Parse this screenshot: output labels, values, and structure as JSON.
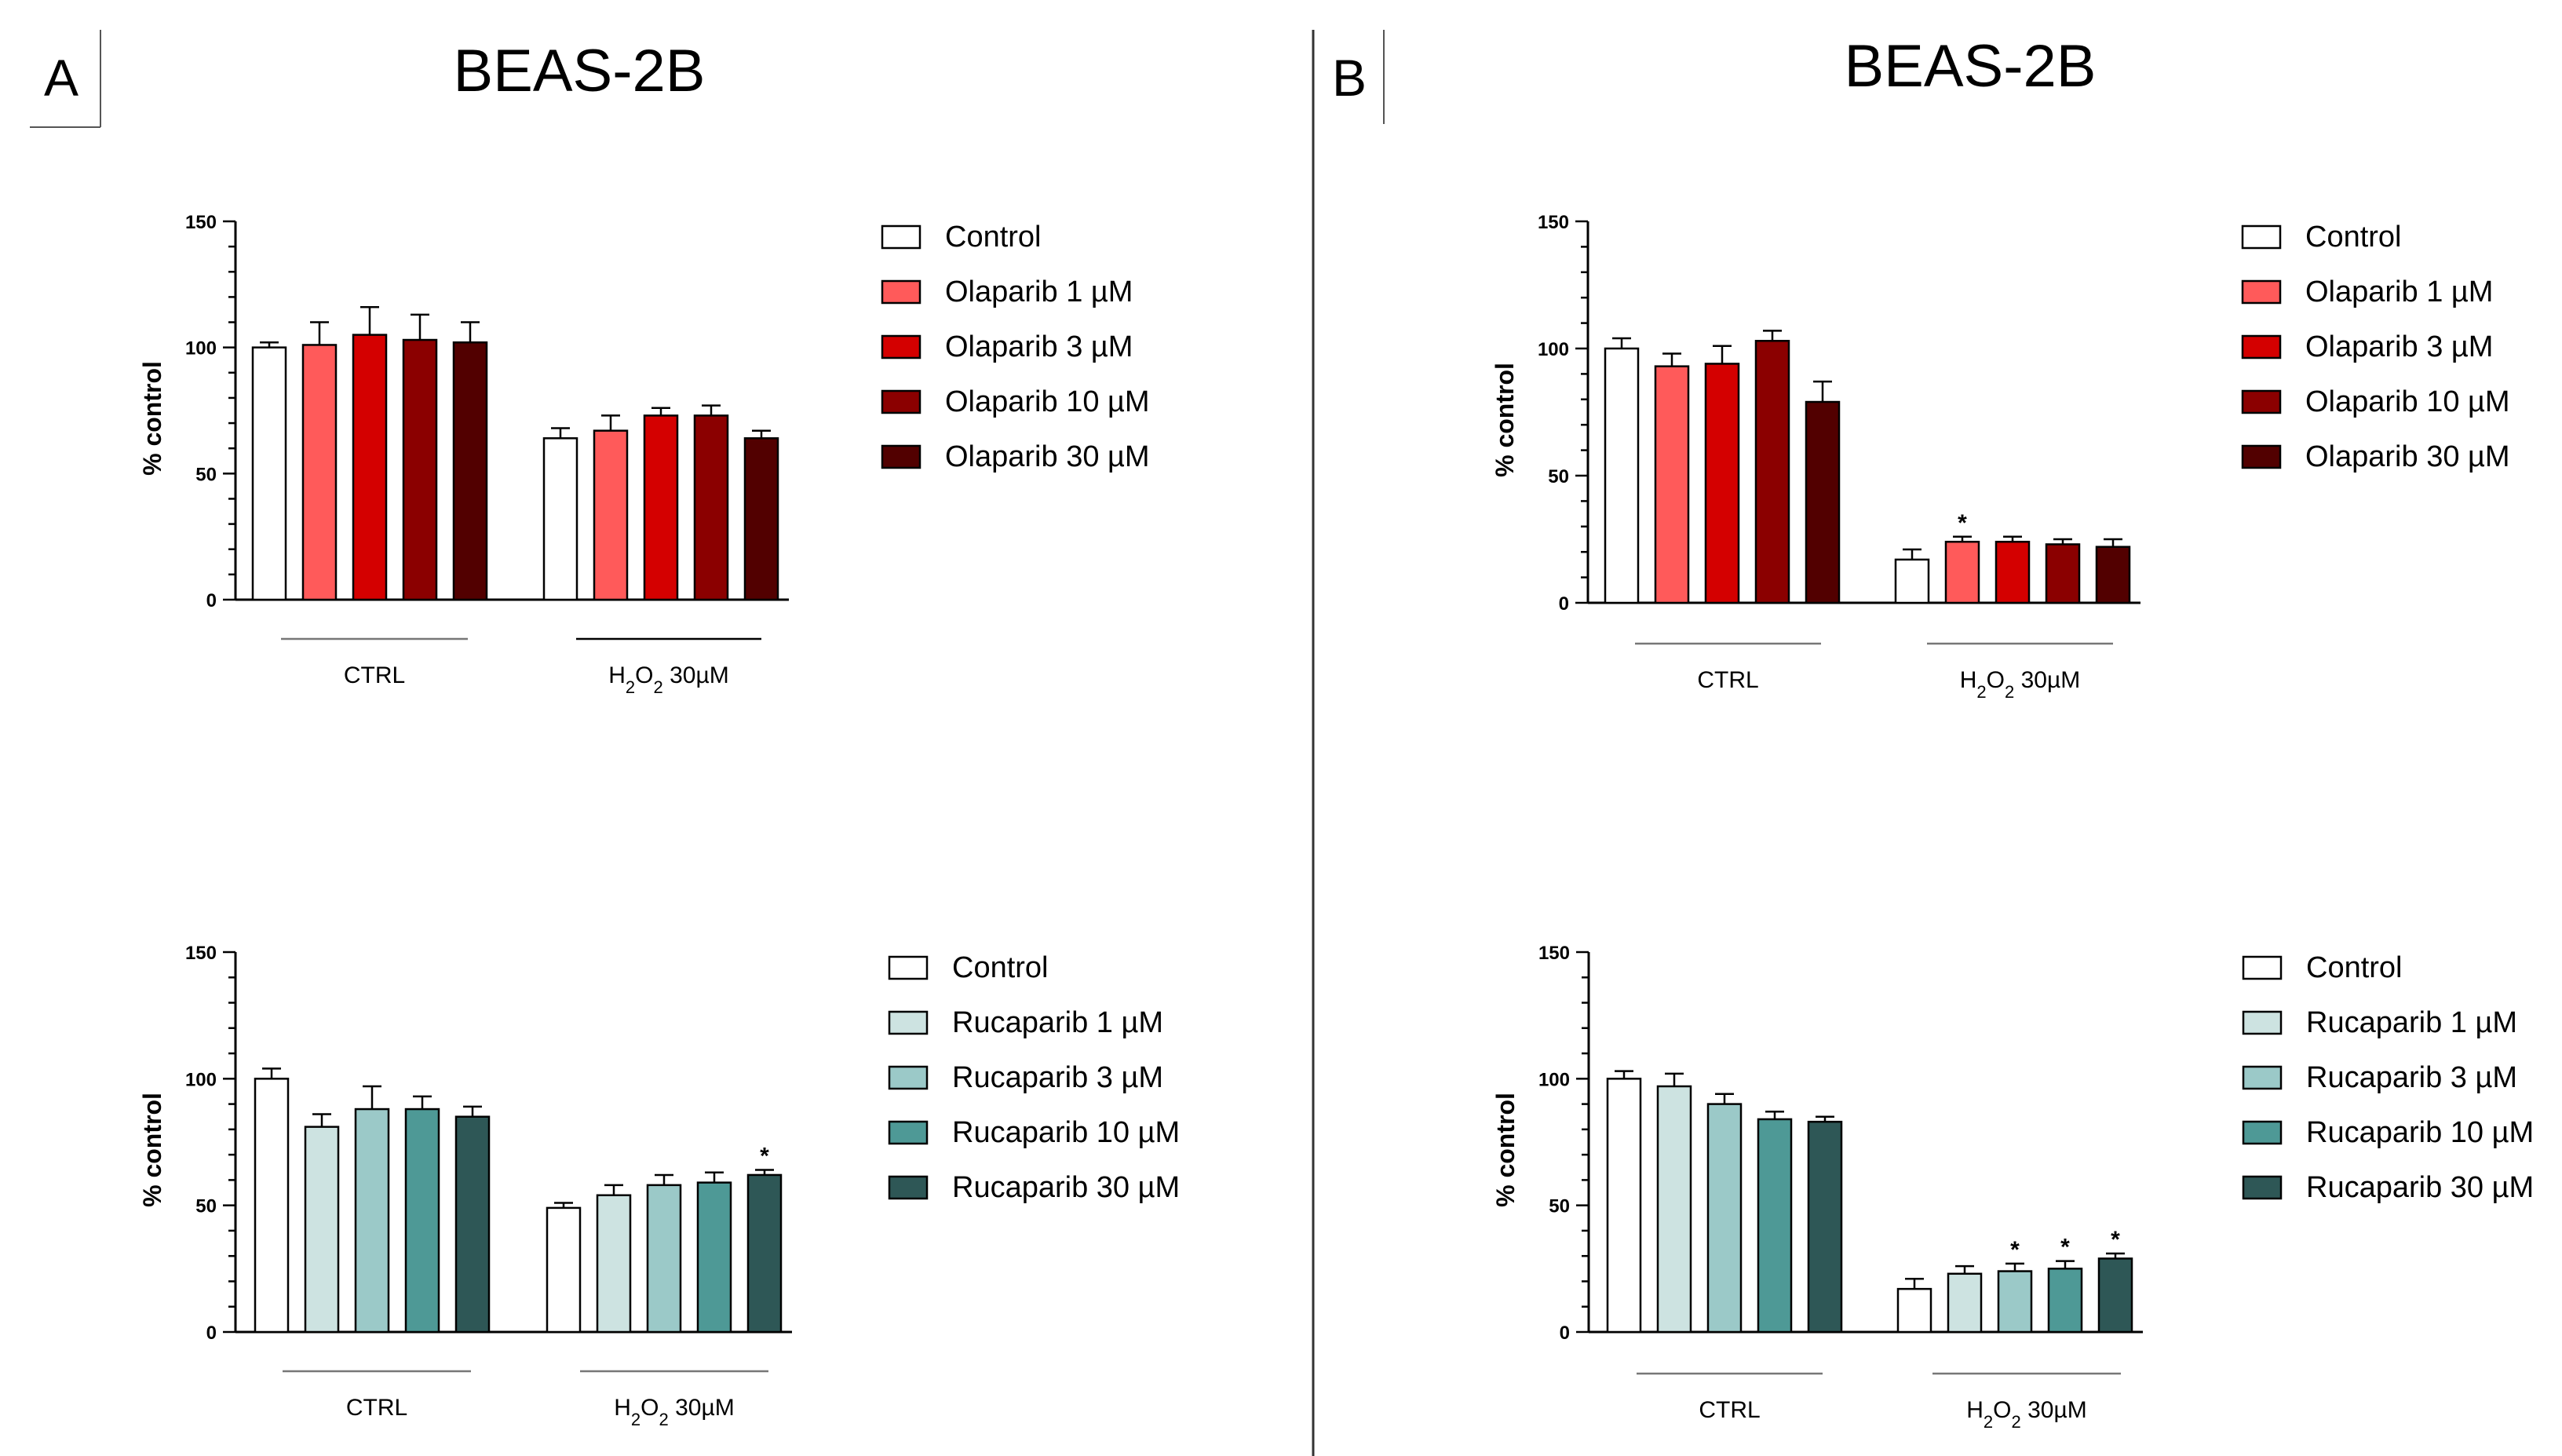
{
  "figure": {
    "panel_a": {
      "letter": "A",
      "title": "BEAS-2B"
    },
    "panel_b": {
      "letter": "B",
      "title": "BEAS-2B"
    }
  },
  "chart_data": [
    {
      "id": "A-olaparib",
      "type": "bar",
      "ylabel": "% control",
      "ylim": [
        0,
        150
      ],
      "yticks": [
        "0",
        "50",
        "100",
        "150"
      ],
      "groups": [
        "CTRL",
        "H2O2 30µM"
      ],
      "legend_placement": "right",
      "series": [
        {
          "name": "Control",
          "color": "#ffffff",
          "values": [
            100,
            64
          ],
          "errors": [
            2,
            4
          ],
          "sig": [
            false,
            false
          ]
        },
        {
          "name": "Olaparib 1 µM",
          "color": "#ff5a5a",
          "values": [
            101,
            67
          ],
          "errors": [
            9,
            6
          ],
          "sig": [
            false,
            false
          ]
        },
        {
          "name": "Olaparib 3 µM",
          "color": "#d40000",
          "values": [
            105,
            73
          ],
          "errors": [
            11,
            3
          ],
          "sig": [
            false,
            false
          ]
        },
        {
          "name": "Olaparib 10 µM",
          "color": "#8b0000",
          "values": [
            103,
            73
          ],
          "errors": [
            10,
            4
          ],
          "sig": [
            false,
            false
          ]
        },
        {
          "name": "Olaparib 30 µM",
          "color": "#520000",
          "values": [
            102,
            64
          ],
          "errors": [
            8,
            3
          ],
          "sig": [
            false,
            false
          ]
        }
      ]
    },
    {
      "id": "B-olaparib",
      "type": "bar",
      "ylabel": "% control",
      "ylim": [
        0,
        150
      ],
      "yticks": [
        "0",
        "50",
        "100",
        "150"
      ],
      "groups": [
        "CTRL",
        "H2O2 30µM"
      ],
      "legend_placement": "right",
      "series": [
        {
          "name": "Control",
          "color": "#ffffff",
          "values": [
            100,
            17
          ],
          "errors": [
            4,
            4
          ],
          "sig": [
            false,
            false
          ]
        },
        {
          "name": "Olaparib 1 µM",
          "color": "#ff5a5a",
          "values": [
            93,
            24
          ],
          "errors": [
            5,
            2
          ],
          "sig": [
            false,
            true
          ]
        },
        {
          "name": "Olaparib 3 µM",
          "color": "#d40000",
          "values": [
            94,
            24
          ],
          "errors": [
            7,
            2
          ],
          "sig": [
            false,
            false
          ]
        },
        {
          "name": "Olaparib 10 µM",
          "color": "#8b0000",
          "values": [
            103,
            23
          ],
          "errors": [
            4,
            2
          ],
          "sig": [
            false,
            false
          ]
        },
        {
          "name": "Olaparib 30 µM",
          "color": "#520000",
          "values": [
            79,
            22
          ],
          "errors": [
            8,
            3
          ],
          "sig": [
            false,
            false
          ]
        }
      ]
    },
    {
      "id": "A-rucaparib",
      "type": "bar",
      "ylabel": "% control",
      "ylim": [
        0,
        150
      ],
      "yticks": [
        "0",
        "50",
        "100",
        "150"
      ],
      "groups": [
        "CTRL",
        "H2O2 30µM"
      ],
      "legend_placement": "right",
      "series": [
        {
          "name": "Control",
          "color": "#ffffff",
          "values": [
            100,
            49
          ],
          "errors": [
            4,
            2
          ],
          "sig": [
            false,
            false
          ]
        },
        {
          "name": "Rucaparib 1 µM",
          "color": "#cde3e1",
          "values": [
            81,
            54
          ],
          "errors": [
            5,
            4
          ],
          "sig": [
            false,
            false
          ]
        },
        {
          "name": "Rucaparib 3 µM",
          "color": "#9bc9c8",
          "values": [
            88,
            58
          ],
          "errors": [
            9,
            4
          ],
          "sig": [
            false,
            false
          ]
        },
        {
          "name": "Rucaparib 10 µM",
          "color": "#4e9996",
          "values": [
            88,
            59
          ],
          "errors": [
            5,
            4
          ],
          "sig": [
            false,
            false
          ]
        },
        {
          "name": "Rucaparib 30 µM",
          "color": "#2e5756",
          "values": [
            85,
            62
          ],
          "errors": [
            4,
            2
          ],
          "sig": [
            false,
            true
          ]
        }
      ]
    },
    {
      "id": "B-rucaparib",
      "type": "bar",
      "ylabel": "% control",
      "ylim": [
        0,
        150
      ],
      "yticks": [
        "0",
        "50",
        "100",
        "150"
      ],
      "groups": [
        "CTRL",
        "H2O2 30µM"
      ],
      "legend_placement": "right",
      "series": [
        {
          "name": "Control",
          "color": "#ffffff",
          "values": [
            100,
            17
          ],
          "errors": [
            3,
            4
          ],
          "sig": [
            false,
            false
          ]
        },
        {
          "name": "Rucaparib 1 µM",
          "color": "#cde3e1",
          "values": [
            97,
            23
          ],
          "errors": [
            5,
            3
          ],
          "sig": [
            false,
            false
          ]
        },
        {
          "name": "Rucaparib 3 µM",
          "color": "#9bc9c8",
          "values": [
            90,
            24
          ],
          "errors": [
            4,
            3
          ],
          "sig": [
            false,
            true
          ]
        },
        {
          "name": "Rucaparib 10 µM",
          "color": "#4e9996",
          "values": [
            84,
            25
          ],
          "errors": [
            3,
            3
          ],
          "sig": [
            false,
            true
          ]
        },
        {
          "name": "Rucaparib 30 µM",
          "color": "#2e5756",
          "values": [
            83,
            29
          ],
          "errors": [
            2,
            2
          ],
          "sig": [
            false,
            true
          ]
        }
      ]
    }
  ]
}
